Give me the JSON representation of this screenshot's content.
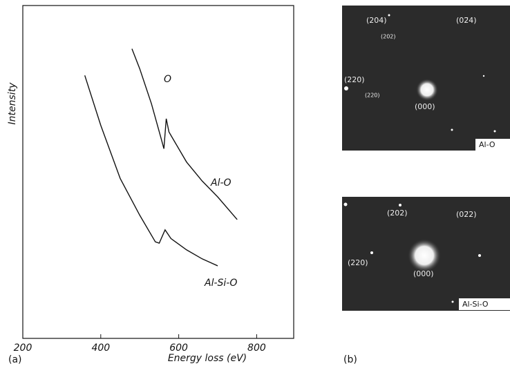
{
  "chart_data": {
    "type": "line",
    "xlabel": "Energy loss (eV)",
    "ylabel": "Intensity",
    "panel_label": "(a)",
    "xlim": [
      200,
      895
    ],
    "ylim": [
      0,
      100
    ],
    "xticks": [
      200,
      400,
      600,
      800
    ],
    "series": [
      {
        "name": "Al-O",
        "color": "#111111",
        "x": [
          480,
          500,
          530,
          555,
          562,
          568,
          575,
          590,
          620,
          660,
          700,
          750
        ],
        "values": [
          87,
          81,
          70.5,
          60,
          57,
          66,
          62,
          59,
          53,
          47.3,
          42.5,
          35.7
        ]
      },
      {
        "name": "Al-Si-O",
        "color": "#111111",
        "x": [
          359,
          400,
          450,
          500,
          540,
          550,
          565,
          580,
          620,
          660,
          700
        ],
        "values": [
          79,
          64,
          48,
          37,
          29,
          28.6,
          32.6,
          30,
          26.6,
          23.9,
          21.8
        ]
      }
    ],
    "annotations": [
      "O"
    ]
  },
  "panel_b": {
    "label": "(b)",
    "top": {
      "tag": "Al-O",
      "spots": [
        "(204)",
        "(02̄4)",
        "(202)",
        "(220)",
        "(220)",
        "(000)"
      ]
    },
    "bottom": {
      "tag": "Al-Si-O",
      "spots": [
        "(202)",
        "(02̄2)",
        "(220)",
        "(000)"
      ]
    }
  }
}
